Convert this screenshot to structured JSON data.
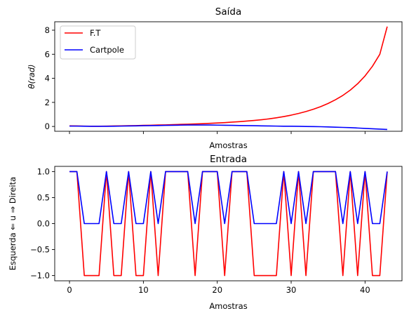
{
  "chart_data": [
    {
      "type": "line",
      "title": "Saída",
      "xlabel": "Amostras",
      "ylabel": "θ(rad)",
      "xlim": [
        -2,
        45
      ],
      "ylim": [
        -0.4,
        8.7
      ],
      "xticks": [
        0,
        10,
        20,
        30,
        40
      ],
      "show_xtick_labels": false,
      "yticks": [
        0,
        2,
        4,
        6,
        8
      ],
      "ytick_labels": [
        "0",
        "2",
        "4",
        "6",
        "8"
      ],
      "grid": false,
      "legend": "top-left",
      "x": [
        0,
        1,
        2,
        3,
        4,
        5,
        6,
        7,
        8,
        9,
        10,
        11,
        12,
        13,
        14,
        15,
        16,
        17,
        18,
        19,
        20,
        21,
        22,
        23,
        24,
        25,
        26,
        27,
        28,
        29,
        30,
        31,
        32,
        33,
        34,
        35,
        36,
        37,
        38,
        39,
        40,
        41,
        42,
        43
      ],
      "series": [
        {
          "name": "F.T",
          "color": "#ff0000",
          "values": [
            0.05,
            0.04,
            0.03,
            0.02,
            0.02,
            0.03,
            0.04,
            0.05,
            0.06,
            0.07,
            0.09,
            0.1,
            0.12,
            0.13,
            0.15,
            0.17,
            0.19,
            0.21,
            0.23,
            0.26,
            0.29,
            0.32,
            0.36,
            0.4,
            0.45,
            0.5,
            0.56,
            0.63,
            0.72,
            0.82,
            0.94,
            1.08,
            1.24,
            1.43,
            1.65,
            1.91,
            2.22,
            2.58,
            3.02,
            3.55,
            4.2,
            5.0,
            6.0,
            8.3
          ]
        },
        {
          "name": "Cartpole",
          "color": "#0000ff",
          "values": [
            0.03,
            0.03,
            0.02,
            0.01,
            0.01,
            0.01,
            0.02,
            0.03,
            0.04,
            0.05,
            0.06,
            0.07,
            0.08,
            0.09,
            0.1,
            0.11,
            0.12,
            0.12,
            0.12,
            0.12,
            0.11,
            0.1,
            0.09,
            0.08,
            0.07,
            0.06,
            0.05,
            0.04,
            0.03,
            0.02,
            0.02,
            0.01,
            0.0,
            -0.01,
            -0.02,
            -0.04,
            -0.06,
            -0.08,
            -0.1,
            -0.13,
            -0.16,
            -0.19,
            -0.22,
            -0.25
          ]
        }
      ]
    },
    {
      "type": "line",
      "title": "Entrada",
      "xlabel": "Amostras",
      "ylabel": "Esquerda ⇐ u ⇒ Direita",
      "xlim": [
        -2,
        45
      ],
      "ylim": [
        -1.1,
        1.1
      ],
      "xticks": [
        0,
        10,
        20,
        30,
        40
      ],
      "xtick_labels": [
        "0",
        "10",
        "20",
        "30",
        "40"
      ],
      "yticks": [
        -1.0,
        -0.5,
        0.0,
        0.5,
        1.0
      ],
      "ytick_labels": [
        "−1.0",
        "−0.5",
        "0.0",
        "0.5",
        "1.0"
      ],
      "grid": false,
      "x": [
        0,
        1,
        2,
        3,
        4,
        5,
        6,
        7,
        8,
        9,
        10,
        11,
        12,
        13,
        14,
        15,
        16,
        17,
        18,
        19,
        20,
        21,
        22,
        23,
        24,
        25,
        26,
        27,
        28,
        29,
        30,
        31,
        32,
        33,
        34,
        35,
        36,
        37,
        38,
        39,
        40,
        41,
        42,
        43
      ],
      "series": [
        {
          "color": "#ff0000",
          "values": [
            1,
            1,
            -1,
            -1,
            -1,
            1,
            -1,
            -1,
            1,
            -1,
            -1,
            1,
            -1,
            1,
            1,
            1,
            1,
            -1,
            1,
            1,
            1,
            -1,
            1,
            1,
            1,
            -1,
            -1,
            -1,
            -1,
            1,
            -1,
            1,
            -1,
            1,
            1,
            1,
            1,
            -1,
            1,
            -1,
            1,
            -1,
            -1,
            1
          ]
        },
        {
          "color": "#0000ff",
          "values": [
            1,
            1,
            0,
            0,
            0,
            1,
            0,
            0,
            1,
            0,
            0,
            1,
            0,
            1,
            1,
            1,
            1,
            0,
            1,
            1,
            1,
            0,
            1,
            1,
            1,
            0,
            0,
            0,
            0,
            1,
            0,
            1,
            0,
            1,
            1,
            1,
            1,
            0,
            1,
            0,
            1,
            0,
            0,
            1
          ]
        }
      ]
    }
  ]
}
